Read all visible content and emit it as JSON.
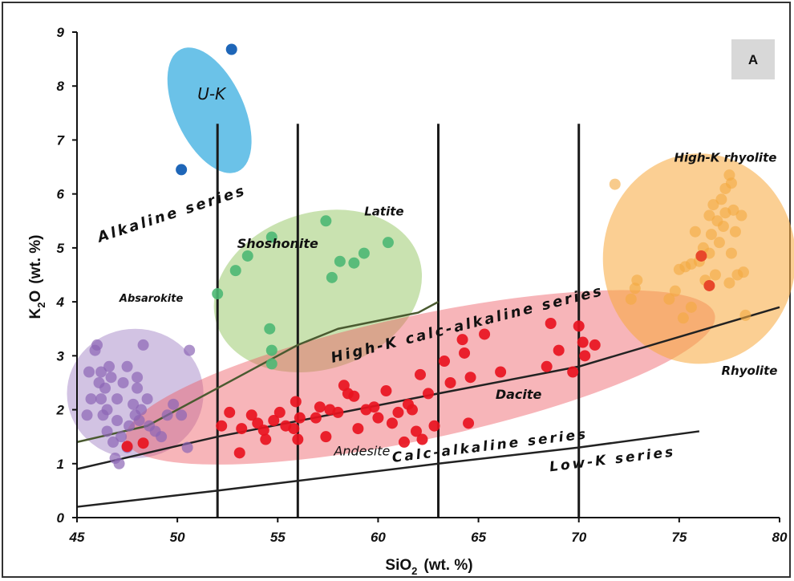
{
  "chart_data": {
    "type": "scatter",
    "panel_label": "A",
    "xlabel": "SiO2 (wt. %)",
    "xlabel_main": "SiO",
    "xlabel_sub": "2",
    "xlabel_units": "(wt. %)",
    "ylabel": "K2O (wt. %)",
    "ylabel_main": "K",
    "ylabel_sub": "2",
    "ylabel_rest": "O",
    "ylabel_units": "(wt. %)",
    "xlim": [
      45,
      80
    ],
    "ylim": [
      0,
      9
    ],
    "x_ticks": [
      "45",
      "50",
      "55",
      "60",
      "65",
      "70",
      "75",
      "80"
    ],
    "y_ticks": [
      "0",
      "1",
      "2",
      "3",
      "4",
      "5",
      "6",
      "7",
      "8",
      "9"
    ],
    "grid": false,
    "verticals": [
      {
        "x": 52,
        "y": [
          0,
          7.3
        ]
      },
      {
        "x": 56,
        "y": [
          0,
          7.3
        ]
      },
      {
        "x": 63,
        "y": [
          0,
          7.3
        ]
      },
      {
        "x": 70,
        "y": [
          0,
          7.3
        ]
      }
    ],
    "boundary_lines": [
      {
        "name": "alkaline-boundary",
        "color": "#4a5a30",
        "points": [
          [
            45,
            1.4
          ],
          [
            48.5,
            1.7
          ],
          [
            52,
            2.4
          ],
          [
            55,
            3.0
          ],
          [
            56,
            3.2
          ],
          [
            58,
            3.5
          ],
          [
            62,
            3.8
          ],
          [
            63,
            4.0
          ]
        ]
      },
      {
        "name": "high-k-boundary",
        "color": "#222222",
        "points": [
          [
            45,
            0.9
          ],
          [
            52,
            1.5
          ],
          [
            63,
            2.3
          ],
          [
            70,
            2.8
          ],
          [
            80,
            3.9
          ]
        ]
      },
      {
        "name": "low-k-boundary",
        "color": "#222222",
        "points": [
          [
            45,
            0.2
          ],
          [
            52,
            0.5
          ],
          [
            63,
            1.0
          ],
          [
            70,
            1.3
          ],
          [
            76,
            1.6
          ]
        ]
      }
    ],
    "fields": [
      {
        "name": "U-K",
        "color": "#3aaee0",
        "opacity": 0.75,
        "cx": 51.6,
        "cy": 7.55,
        "rx": 1.7,
        "ry": 1.25,
        "rotate": -25
      },
      {
        "name": "Alkaline",
        "color": "#9b7bc0",
        "opacity": 0.45,
        "cx": 47.9,
        "cy": 2.3,
        "rx": 3.4,
        "ry": 1.2,
        "rotate": 0
      },
      {
        "name": "Shoshonite",
        "color": "#9ccb70",
        "opacity": 0.55,
        "cx": 57.0,
        "cy": 4.2,
        "rx": 5.3,
        "ry": 1.45,
        "rotate": -18
      },
      {
        "name": "Calc-alkaline",
        "color": "#ee5b63",
        "opacity": 0.45,
        "cx": 62.1,
        "cy": 2.6,
        "rx": 15.0,
        "ry": 1.15,
        "rotate": -12
      },
      {
        "name": "High-K rhyolite",
        "color": "#f7a83a",
        "opacity": 0.55,
        "cx": 76.0,
        "cy": 4.8,
        "rx": 4.8,
        "ry": 1.95,
        "rotate": 0
      }
    ],
    "series": [
      {
        "name": "U-K",
        "color": "#1e66b8",
        "opacity": 1,
        "points": [
          [
            50.2,
            6.45
          ],
          [
            52.7,
            8.68
          ]
        ]
      },
      {
        "name": "Shoshonite",
        "color": "#4cb874",
        "opacity": 0.9,
        "points": [
          [
            52.0,
            4.15
          ],
          [
            52.9,
            4.58
          ],
          [
            53.5,
            4.85
          ],
          [
            54.7,
            5.2
          ],
          [
            57.4,
            5.5
          ],
          [
            60.5,
            5.1
          ],
          [
            59.3,
            4.9
          ],
          [
            58.8,
            4.72
          ],
          [
            58.1,
            4.75
          ],
          [
            57.7,
            4.45
          ],
          [
            54.6,
            3.5
          ],
          [
            54.7,
            3.1
          ],
          [
            54.7,
            2.85
          ]
        ]
      },
      {
        "name": "Absarokite",
        "color": "#8c65b5",
        "opacity": 0.7,
        "points": [
          [
            45.6,
            2.7
          ],
          [
            45.7,
            2.2
          ],
          [
            45.5,
            1.9
          ],
          [
            45.9,
            3.1
          ],
          [
            46.0,
            3.2
          ],
          [
            46.1,
            2.5
          ],
          [
            46.2,
            2.7
          ],
          [
            46.2,
            2.2
          ],
          [
            46.3,
            1.9
          ],
          [
            46.4,
            2.4
          ],
          [
            46.5,
            2.0
          ],
          [
            46.5,
            1.6
          ],
          [
            46.6,
            2.8
          ],
          [
            46.7,
            2.6
          ],
          [
            46.8,
            1.4
          ],
          [
            46.9,
            1.1
          ],
          [
            47.0,
            1.8
          ],
          [
            47.0,
            2.2
          ],
          [
            47.2,
            1.5
          ],
          [
            47.3,
            2.5
          ],
          [
            47.5,
            2.8
          ],
          [
            47.6,
            1.7
          ],
          [
            47.8,
            2.1
          ],
          [
            47.9,
            1.9
          ],
          [
            48.0,
            2.6
          ],
          [
            48.1,
            1.8
          ],
          [
            48.2,
            2.0
          ],
          [
            48.3,
            3.2
          ],
          [
            48.5,
            2.2
          ],
          [
            48.6,
            1.7
          ],
          [
            48.9,
            1.6
          ],
          [
            49.2,
            1.5
          ],
          [
            49.5,
            1.9
          ],
          [
            49.8,
            2.1
          ],
          [
            50.2,
            1.9
          ],
          [
            50.6,
            3.1
          ],
          [
            50.5,
            1.3
          ],
          [
            47.1,
            1.0
          ],
          [
            47.5,
            1.3
          ],
          [
            48.0,
            2.4
          ]
        ]
      },
      {
        "name": "Calc-alkaline",
        "color": "#e8131f",
        "opacity": 0.92,
        "points": [
          [
            47.5,
            1.32
          ],
          [
            48.3,
            1.38
          ],
          [
            52.2,
            1.7
          ],
          [
            52.6,
            1.95
          ],
          [
            53.1,
            1.2
          ],
          [
            53.2,
            1.65
          ],
          [
            53.7,
            1.9
          ],
          [
            54.0,
            1.75
          ],
          [
            54.3,
            1.62
          ],
          [
            54.4,
            1.45
          ],
          [
            54.8,
            1.8
          ],
          [
            55.1,
            1.95
          ],
          [
            55.4,
            1.7
          ],
          [
            55.8,
            1.65
          ],
          [
            56.0,
            1.45
          ],
          [
            56.1,
            1.85
          ],
          [
            55.9,
            2.15
          ],
          [
            56.9,
            1.85
          ],
          [
            57.1,
            2.05
          ],
          [
            57.4,
            1.5
          ],
          [
            57.6,
            2.0
          ],
          [
            58.0,
            1.95
          ],
          [
            58.3,
            2.45
          ],
          [
            58.5,
            2.3
          ],
          [
            58.8,
            2.25
          ],
          [
            59.0,
            1.65
          ],
          [
            59.4,
            2.0
          ],
          [
            59.8,
            2.05
          ],
          [
            60.0,
            1.85
          ],
          [
            60.4,
            2.35
          ],
          [
            60.7,
            1.75
          ],
          [
            61.0,
            1.95
          ],
          [
            61.3,
            1.4
          ],
          [
            61.5,
            2.1
          ],
          [
            61.7,
            2.0
          ],
          [
            61.9,
            1.6
          ],
          [
            62.1,
            2.65
          ],
          [
            62.2,
            1.45
          ],
          [
            62.5,
            2.3
          ],
          [
            62.8,
            1.7
          ],
          [
            63.3,
            2.9
          ],
          [
            63.6,
            2.5
          ],
          [
            64.2,
            3.3
          ],
          [
            64.3,
            3.05
          ],
          [
            64.6,
            2.6
          ],
          [
            64.5,
            1.75
          ],
          [
            65.3,
            3.4
          ],
          [
            66.1,
            2.7
          ],
          [
            68.4,
            2.8
          ],
          [
            68.6,
            3.6
          ],
          [
            69.0,
            3.1
          ],
          [
            69.7,
            2.7
          ],
          [
            70.0,
            3.55
          ],
          [
            70.2,
            3.25
          ],
          [
            70.3,
            3.0
          ],
          [
            70.8,
            3.2
          ]
        ]
      },
      {
        "name": "High-K rhyolite",
        "color": "#f4a840",
        "opacity": 0.6,
        "points": [
          [
            71.8,
            6.18
          ],
          [
            72.6,
            4.05
          ],
          [
            72.8,
            4.25
          ],
          [
            72.9,
            4.4
          ],
          [
            74.5,
            4.05
          ],
          [
            74.8,
            4.2
          ],
          [
            75.0,
            4.6
          ],
          [
            75.3,
            4.65
          ],
          [
            75.6,
            4.7
          ],
          [
            75.2,
            3.7
          ],
          [
            75.6,
            3.9
          ],
          [
            75.8,
            5.3
          ],
          [
            76.0,
            4.75
          ],
          [
            76.2,
            5.0
          ],
          [
            76.3,
            4.4
          ],
          [
            76.5,
            4.9
          ],
          [
            76.5,
            5.6
          ],
          [
            76.6,
            5.25
          ],
          [
            76.7,
            5.8
          ],
          [
            76.8,
            4.5
          ],
          [
            76.9,
            5.5
          ],
          [
            77.0,
            5.1
          ],
          [
            77.1,
            5.9
          ],
          [
            77.2,
            5.4
          ],
          [
            77.3,
            5.65
          ],
          [
            77.3,
            6.1
          ],
          [
            77.5,
            6.35
          ],
          [
            77.6,
            4.9
          ],
          [
            77.7,
            5.7
          ],
          [
            77.8,
            5.3
          ],
          [
            77.9,
            4.5
          ],
          [
            78.2,
            4.55
          ],
          [
            78.3,
            3.75
          ],
          [
            77.5,
            4.35
          ],
          [
            77.6,
            6.2
          ],
          [
            78.1,
            5.6
          ]
        ]
      },
      {
        "name": "Rhyolite-red",
        "color": "#e8472b",
        "opacity": 1,
        "points": [
          [
            76.1,
            4.85
          ],
          [
            76.5,
            4.3
          ]
        ]
      }
    ],
    "region_labels": [
      {
        "text": "U-K",
        "x": 51.7,
        "y": 7.75,
        "size": 20,
        "color": "#1e6fae",
        "rotate": 0
      },
      {
        "text": "Alkaline series",
        "x": 49.8,
        "y": 5.55,
        "size": 18,
        "rotate": -18,
        "bold": true
      },
      {
        "text": "Shoshonite",
        "x": 55.0,
        "y": 5.0,
        "size": 16,
        "rotate": 0,
        "bold": true
      },
      {
        "text": "Latite",
        "x": 60.3,
        "y": 5.6,
        "size": 15,
        "rotate": 0,
        "bold": true
      },
      {
        "text": "Absarokite",
        "x": 48.7,
        "y": 4.0,
        "size": 13,
        "rotate": 0,
        "bold": true
      },
      {
        "text": "High-K calc-alkaline series",
        "x": 64.5,
        "y": 3.5,
        "size": 18,
        "rotate": -14,
        "bold": true
      },
      {
        "text": "Dacite",
        "x": 67.0,
        "y": 2.2,
        "size": 16,
        "rotate": 0,
        "bold": true
      },
      {
        "text": "Andesite",
        "x": 59.2,
        "y": 1.15,
        "size": 16,
        "rotate": 0,
        "bold": false
      },
      {
        "text": "Calc-alkaline series",
        "x": 65.6,
        "y": 1.25,
        "size": 17,
        "rotate": -7,
        "bold": true
      },
      {
        "text": "Low-K series",
        "x": 71.7,
        "y": 1.0,
        "size": 17,
        "rotate": -7,
        "bold": true
      },
      {
        "text": "High-K rhyolite",
        "x": 77.3,
        "y": 6.6,
        "size": 15,
        "rotate": 0,
        "bold": true
      },
      {
        "text": "Rhyolite",
        "x": 78.5,
        "y": 2.65,
        "size": 15,
        "rotate": 0,
        "bold": true
      }
    ]
  }
}
